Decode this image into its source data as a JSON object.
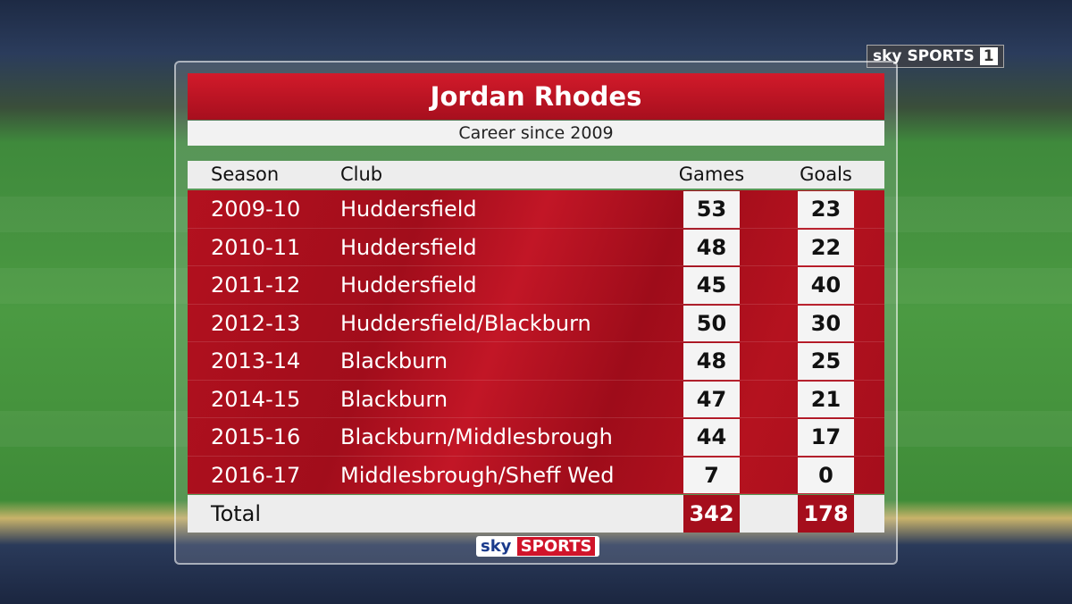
{
  "header": {
    "title": "Jordan Rhodes",
    "subtitle": "Career since 2009"
  },
  "table": {
    "columns": [
      "Season",
      "Club",
      "Games",
      "Goals"
    ],
    "rows": [
      [
        "2009-10",
        "Huddersfield",
        "53",
        "23"
      ],
      [
        "2010-11",
        "Huddersfield",
        "48",
        "22"
      ],
      [
        "2011-12",
        "Huddersfield",
        "45",
        "40"
      ],
      [
        "2012-13",
        "Huddersfield/Blackburn",
        "50",
        "30"
      ],
      [
        "2013-14",
        "Blackburn",
        "48",
        "25"
      ],
      [
        "2014-15",
        "Blackburn",
        "47",
        "21"
      ],
      [
        "2015-16",
        "Blackburn/Middlesbrough",
        "44",
        "17"
      ],
      [
        "2016-17",
        "Middlesbrough/Sheff Wed",
        "7",
        "0"
      ]
    ],
    "total": [
      "Total",
      "342",
      "178"
    ]
  },
  "branding": {
    "top": [
      "sky",
      "SPORTS",
      "1"
    ],
    "bottom": [
      "sky",
      "SPORTS"
    ]
  }
}
